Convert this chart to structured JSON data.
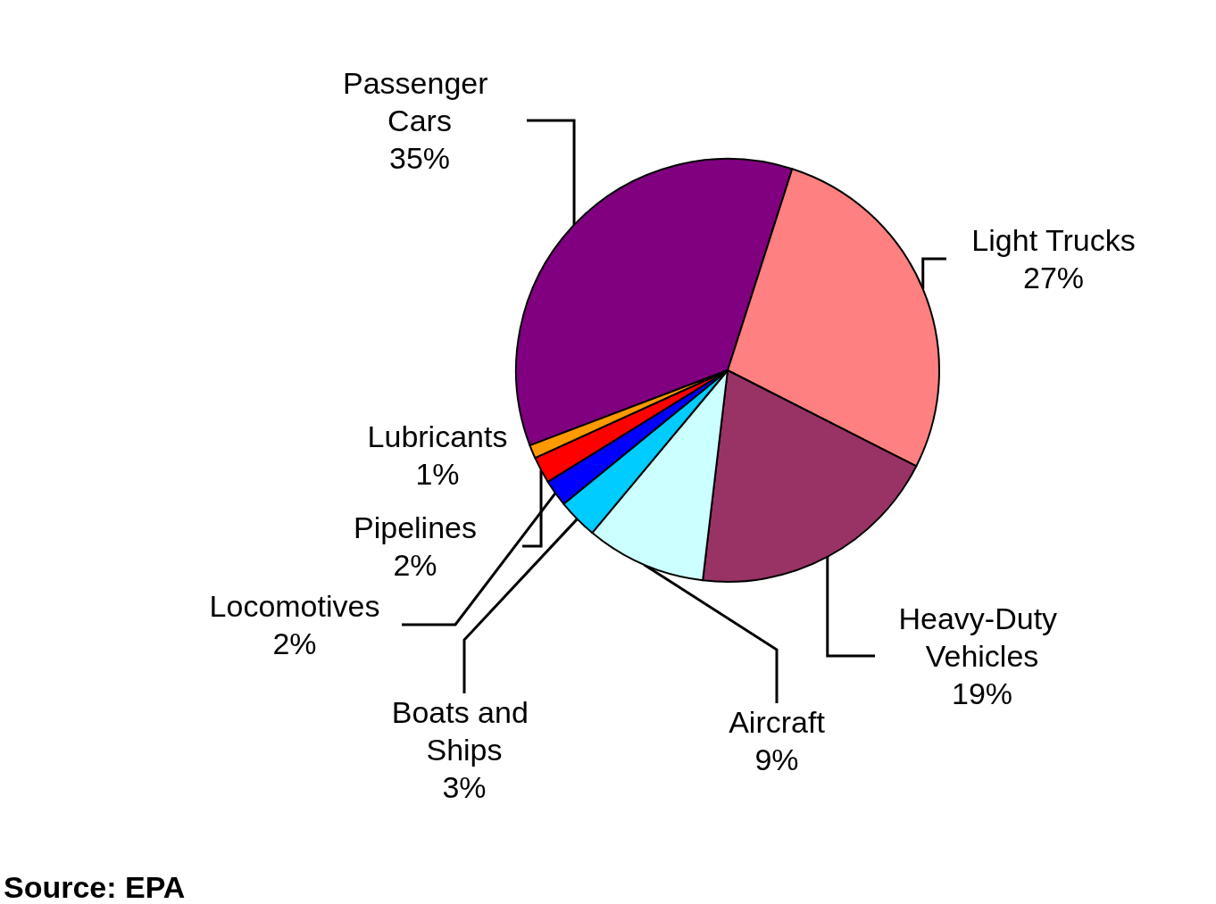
{
  "chart_data": {
    "type": "pie",
    "categories": [
      "Passenger Cars",
      "Light Trucks",
      "Heavy-Duty Vehicles",
      "Aircraft",
      "Boats and Ships",
      "Locomotives",
      "Pipelines",
      "Lubricants"
    ],
    "values": [
      35,
      27,
      19,
      9,
      3,
      2,
      2,
      1
    ],
    "value_labels": [
      "35%",
      "27%",
      "19%",
      "9%",
      "3%",
      "2%",
      "2%",
      "1%"
    ],
    "colors": [
      "#800080",
      "#ff8080",
      "#993366",
      "#ccffff",
      "#00ccff",
      "#0000ff",
      "#ff0000",
      "#ff9900"
    ],
    "annotations": [
      "Source: EPA"
    ]
  }
}
